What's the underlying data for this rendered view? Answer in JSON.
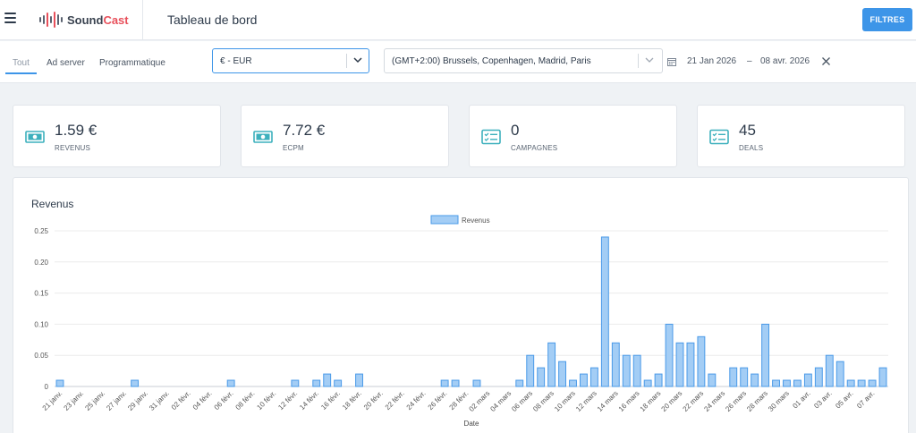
{
  "app": {
    "logo_prefix": "Sound",
    "logo_suffix": "Cast",
    "page_title": "Tableau de bord",
    "filter_button_label": "FILTRES"
  },
  "filters": {
    "tabs": [
      {
        "label": "Tout",
        "active": true
      },
      {
        "label": "Ad server",
        "active": false
      },
      {
        "label": "Programmatique",
        "active": false
      }
    ],
    "currency": "€ - EUR",
    "timezone": "(GMT+2:00) Brussels, Copenhagen, Madrid, Paris",
    "date_start": "21 Jan 2026",
    "date_separator": "–",
    "date_end": "08 avr. 2026"
  },
  "kpis": [
    {
      "value": "1.59 €",
      "label": "REVENUS",
      "icon": "banknote-icon"
    },
    {
      "value": "7.72 €",
      "label": "ECPM",
      "icon": "banknote-icon"
    },
    {
      "value": "0",
      "label": "CAMPAGNES",
      "icon": "checklist-icon"
    },
    {
      "value": "45",
      "label": "DEALS",
      "icon": "checklist-icon"
    }
  ],
  "colors": {
    "accent": "#3d95e8",
    "bar_fill": "#a3cdf5",
    "bar_stroke": "#4a9ae8",
    "icon_teal": "#3db0bd",
    "logo_red": "#e8505b"
  },
  "chart_data": {
    "type": "bar",
    "title": "Revenus",
    "legend": [
      "Revenus"
    ],
    "legend_position": "top",
    "xlabel": "Date",
    "ylabel": "",
    "ylim": [
      0,
      0.25
    ],
    "yticks": [
      "0",
      "0.05",
      "0.10",
      "0.15",
      "0.20",
      "0.25"
    ],
    "grid": true,
    "xtick_labels": [
      "21 janv.",
      "23 janv.",
      "25 janv.",
      "27 janv.",
      "29 janv.",
      "31 janv.",
      "02 févr.",
      "04 févr.",
      "06 févr.",
      "08 févr.",
      "10 févr.",
      "12 févr.",
      "14 févr.",
      "16 févr.",
      "18 févr.",
      "20 févr.",
      "22 févr.",
      "24 févr.",
      "26 févr.",
      "28 févr.",
      "02 mars",
      "04 mars",
      "06 mars",
      "08 mars",
      "10 mars",
      "12 mars",
      "14 mars",
      "16 mars",
      "18 mars",
      "20 mars",
      "22 mars",
      "24 mars",
      "26 mars",
      "28 mars",
      "30 mars",
      "01 avr.",
      "03 avr.",
      "05 avr.",
      "07 avr."
    ],
    "series": [
      {
        "name": "Revenus",
        "values": [
          0.01,
          0,
          0,
          0,
          0,
          0,
          0,
          0.01,
          0,
          0,
          0,
          0,
          0,
          0,
          0,
          0,
          0.01,
          0,
          0,
          0,
          0,
          0,
          0.01,
          0,
          0.01,
          0.02,
          0.01,
          0,
          0.02,
          0,
          0,
          0,
          0,
          0,
          0,
          0,
          0.01,
          0.01,
          0,
          0.01,
          0,
          0,
          0,
          0.01,
          0.05,
          0.03,
          0.07,
          0.04,
          0.01,
          0.02,
          0.03,
          0.24,
          0.07,
          0.05,
          0.05,
          0.01,
          0.02,
          0.1,
          0.07,
          0.07,
          0.08,
          0.02,
          0,
          0.03,
          0.03,
          0.02,
          0.1,
          0.01,
          0.01,
          0.01,
          0.02,
          0.03,
          0.05,
          0.04,
          0.01,
          0.01,
          0.01,
          0.03
        ]
      }
    ]
  }
}
